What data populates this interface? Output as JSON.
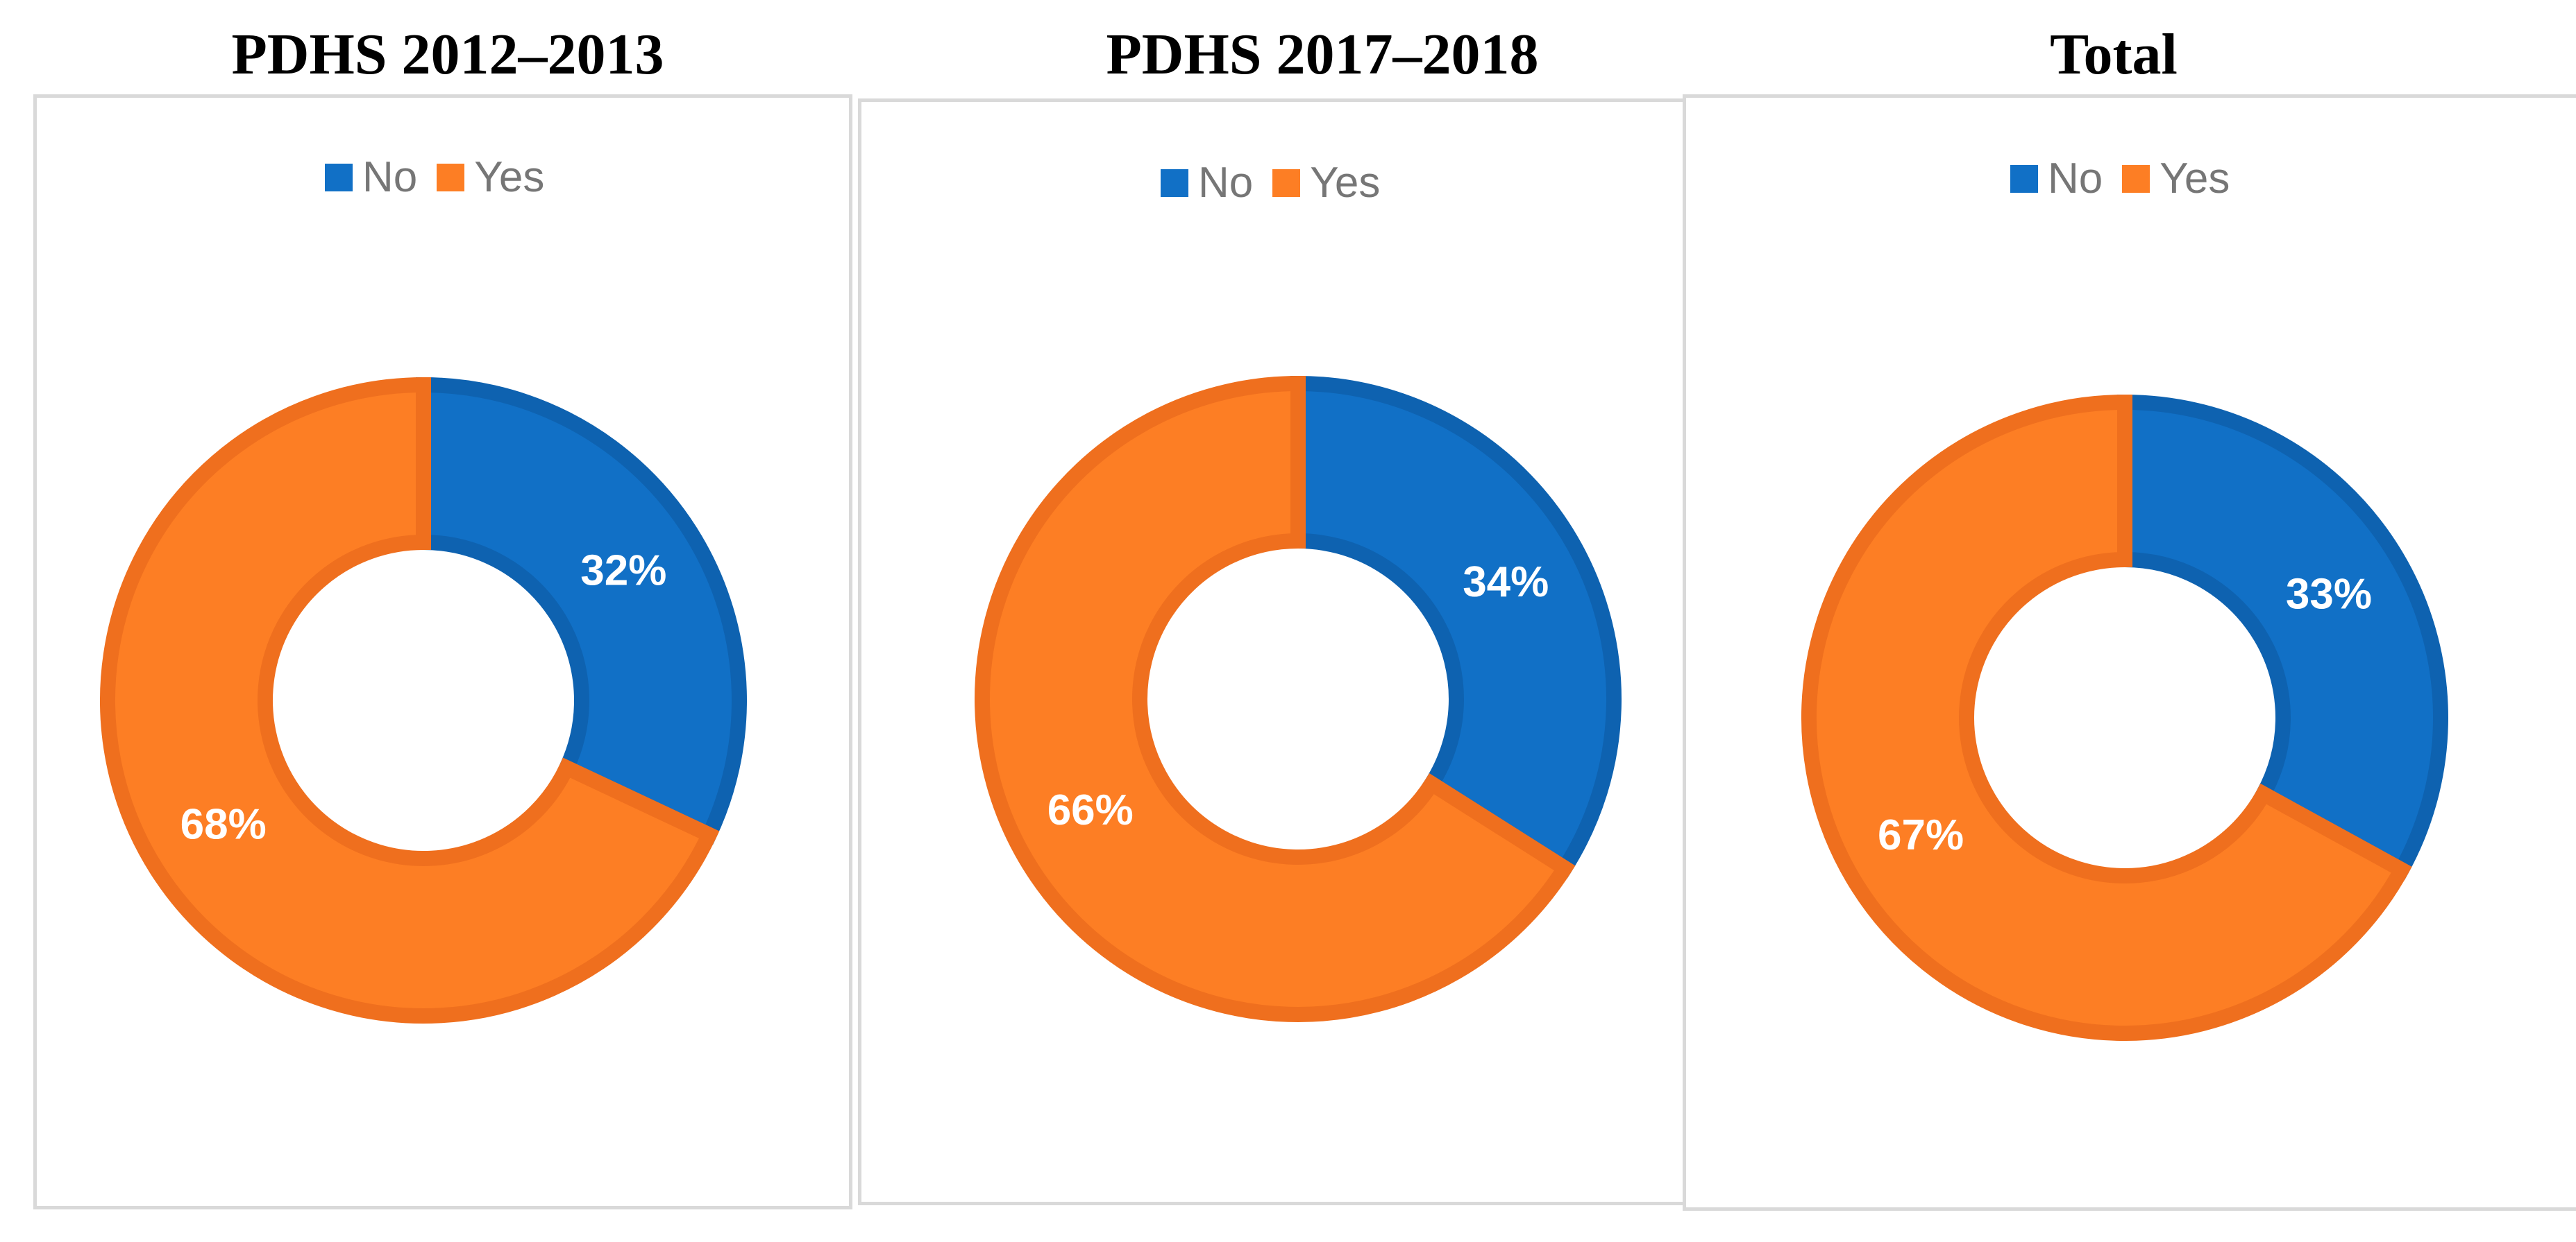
{
  "colors": {
    "no": "#1170c6",
    "no_edge": "#0e62b0",
    "yes": "#fd7e24",
    "yes_edge": "#ef6f1e"
  },
  "legend": {
    "no": "No",
    "yes": "Yes"
  },
  "chart_data": [
    {
      "type": "pie",
      "title": "PDHS 2012–2013",
      "categories": [
        "No",
        "Yes"
      ],
      "values": [
        32,
        68
      ],
      "labels": [
        "32%",
        "68%"
      ],
      "legend_position": "top"
    },
    {
      "type": "pie",
      "title": "PDHS 2017–2018",
      "categories": [
        "No",
        "Yes"
      ],
      "values": [
        34,
        66
      ],
      "labels": [
        "34%",
        "66%"
      ],
      "legend_position": "top"
    },
    {
      "type": "pie",
      "title": "Total",
      "categories": [
        "No",
        "Yes"
      ],
      "values": [
        33,
        67
      ],
      "labels": [
        "33%",
        "67%"
      ],
      "legend_position": "top"
    }
  ]
}
